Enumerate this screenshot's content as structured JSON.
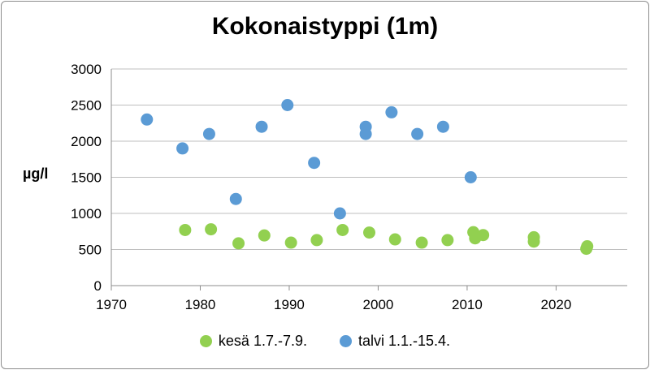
{
  "chart_data": {
    "type": "scatter",
    "title": "Kokonaistyppi (1m)",
    "xlabel": "",
    "ylabel": "µg/l",
    "xlim": [
      1970,
      2028
    ],
    "ylim": [
      0,
      3000
    ],
    "xticks": [
      1970,
      1980,
      1990,
      2000,
      2010,
      2020
    ],
    "yticks": [
      0,
      500,
      1000,
      1500,
      2000,
      2500,
      3000
    ],
    "grid": "horizontal",
    "legend_position": "bottom",
    "series": [
      {
        "name": "kesä 1.7.-7.9.",
        "color": "#92d050",
        "points": [
          {
            "x": 1978.3,
            "y": 770
          },
          {
            "x": 1981.2,
            "y": 780
          },
          {
            "x": 1984.3,
            "y": 585
          },
          {
            "x": 1987.2,
            "y": 695
          },
          {
            "x": 1990.2,
            "y": 595
          },
          {
            "x": 1993.1,
            "y": 630
          },
          {
            "x": 1996.0,
            "y": 770
          },
          {
            "x": 1999.0,
            "y": 735
          },
          {
            "x": 2001.9,
            "y": 640
          },
          {
            "x": 2004.9,
            "y": 595
          },
          {
            "x": 2007.8,
            "y": 630
          },
          {
            "x": 2010.7,
            "y": 740
          },
          {
            "x": 2010.9,
            "y": 655
          },
          {
            "x": 2011.8,
            "y": 700
          },
          {
            "x": 2017.5,
            "y": 670
          },
          {
            "x": 2017.5,
            "y": 610
          },
          {
            "x": 2023.5,
            "y": 545
          },
          {
            "x": 2023.4,
            "y": 510
          }
        ]
      },
      {
        "name": "talvi 1.1.-15.4.",
        "color": "#5b9bd5",
        "points": [
          {
            "x": 1974.0,
            "y": 2300
          },
          {
            "x": 1978.0,
            "y": 1900
          },
          {
            "x": 1981.0,
            "y": 2100
          },
          {
            "x": 1984.0,
            "y": 1200
          },
          {
            "x": 1986.9,
            "y": 2200
          },
          {
            "x": 1989.8,
            "y": 2500
          },
          {
            "x": 1992.8,
            "y": 1700
          },
          {
            "x": 1995.7,
            "y": 1000
          },
          {
            "x": 1998.6,
            "y": 2200
          },
          {
            "x": 1998.6,
            "y": 2100
          },
          {
            "x": 2001.5,
            "y": 2400
          },
          {
            "x": 2004.4,
            "y": 2100
          },
          {
            "x": 2007.3,
            "y": 2200
          },
          {
            "x": 2010.4,
            "y": 1500
          }
        ]
      }
    ]
  }
}
